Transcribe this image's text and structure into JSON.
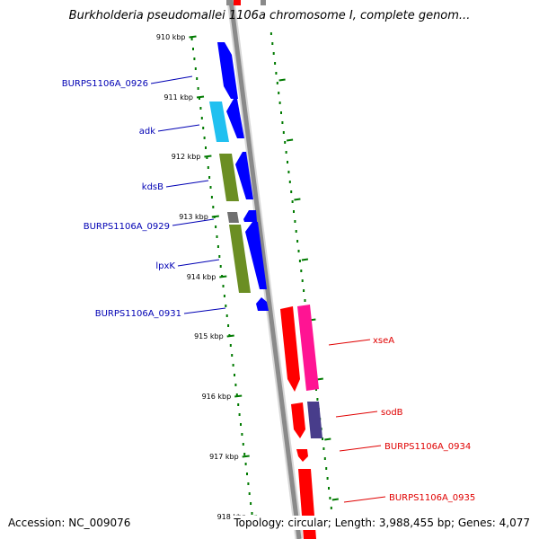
{
  "title": "Burkholderia pseudomallei 1106a chromosome I, complete genom...",
  "accession_text": "Accession: NC_009076",
  "topology_text": "Topology: circular; Length: 3,988,455 bp; Genes: 4,077",
  "ticks": [
    {
      "label": "910 kbp",
      "bp": 910000
    },
    {
      "label": "911 kbp",
      "bp": 911000
    },
    {
      "label": "912 kbp",
      "bp": 912000
    },
    {
      "label": "913 kbp",
      "bp": 913000
    },
    {
      "label": "914 kbp",
      "bp": 914000
    },
    {
      "label": "915 kbp",
      "bp": 915000
    },
    {
      "label": "916 kbp",
      "bp": 916000
    },
    {
      "label": "917 kbp",
      "bp": 917000
    },
    {
      "label": "918 kbp",
      "bp": 918000
    }
  ],
  "gene_labels": [
    {
      "name": "BURPS1106A_0926",
      "strand": "forward"
    },
    {
      "name": "adk",
      "strand": "forward"
    },
    {
      "name": "kdsB",
      "strand": "forward"
    },
    {
      "name": "BURPS1106A_0929",
      "strand": "forward"
    },
    {
      "name": "lpxK",
      "strand": "forward"
    },
    {
      "name": "BURPS1106A_0931",
      "strand": "forward"
    },
    {
      "name": "xseA",
      "strand": "reverse"
    },
    {
      "name": "sodB",
      "strand": "reverse"
    },
    {
      "name": "BURPS1106A_0934",
      "strand": "reverse"
    },
    {
      "name": "BURPS1106A_0935",
      "strand": "reverse"
    }
  ],
  "colors": {
    "forward_label": "#0000b4",
    "reverse_label": "#e00000",
    "forward_gene": "#0000ff",
    "reverse_gene": "#ff0000",
    "tick_mark": "#007a00",
    "backbone": "#8a8a8a",
    "cog_cyan": "#20c0f0",
    "cog_olive": "#6b8e23",
    "cog_pink": "#ff1493",
    "cog_purple": "#483d8b",
    "cog_gray": "#707070"
  }
}
